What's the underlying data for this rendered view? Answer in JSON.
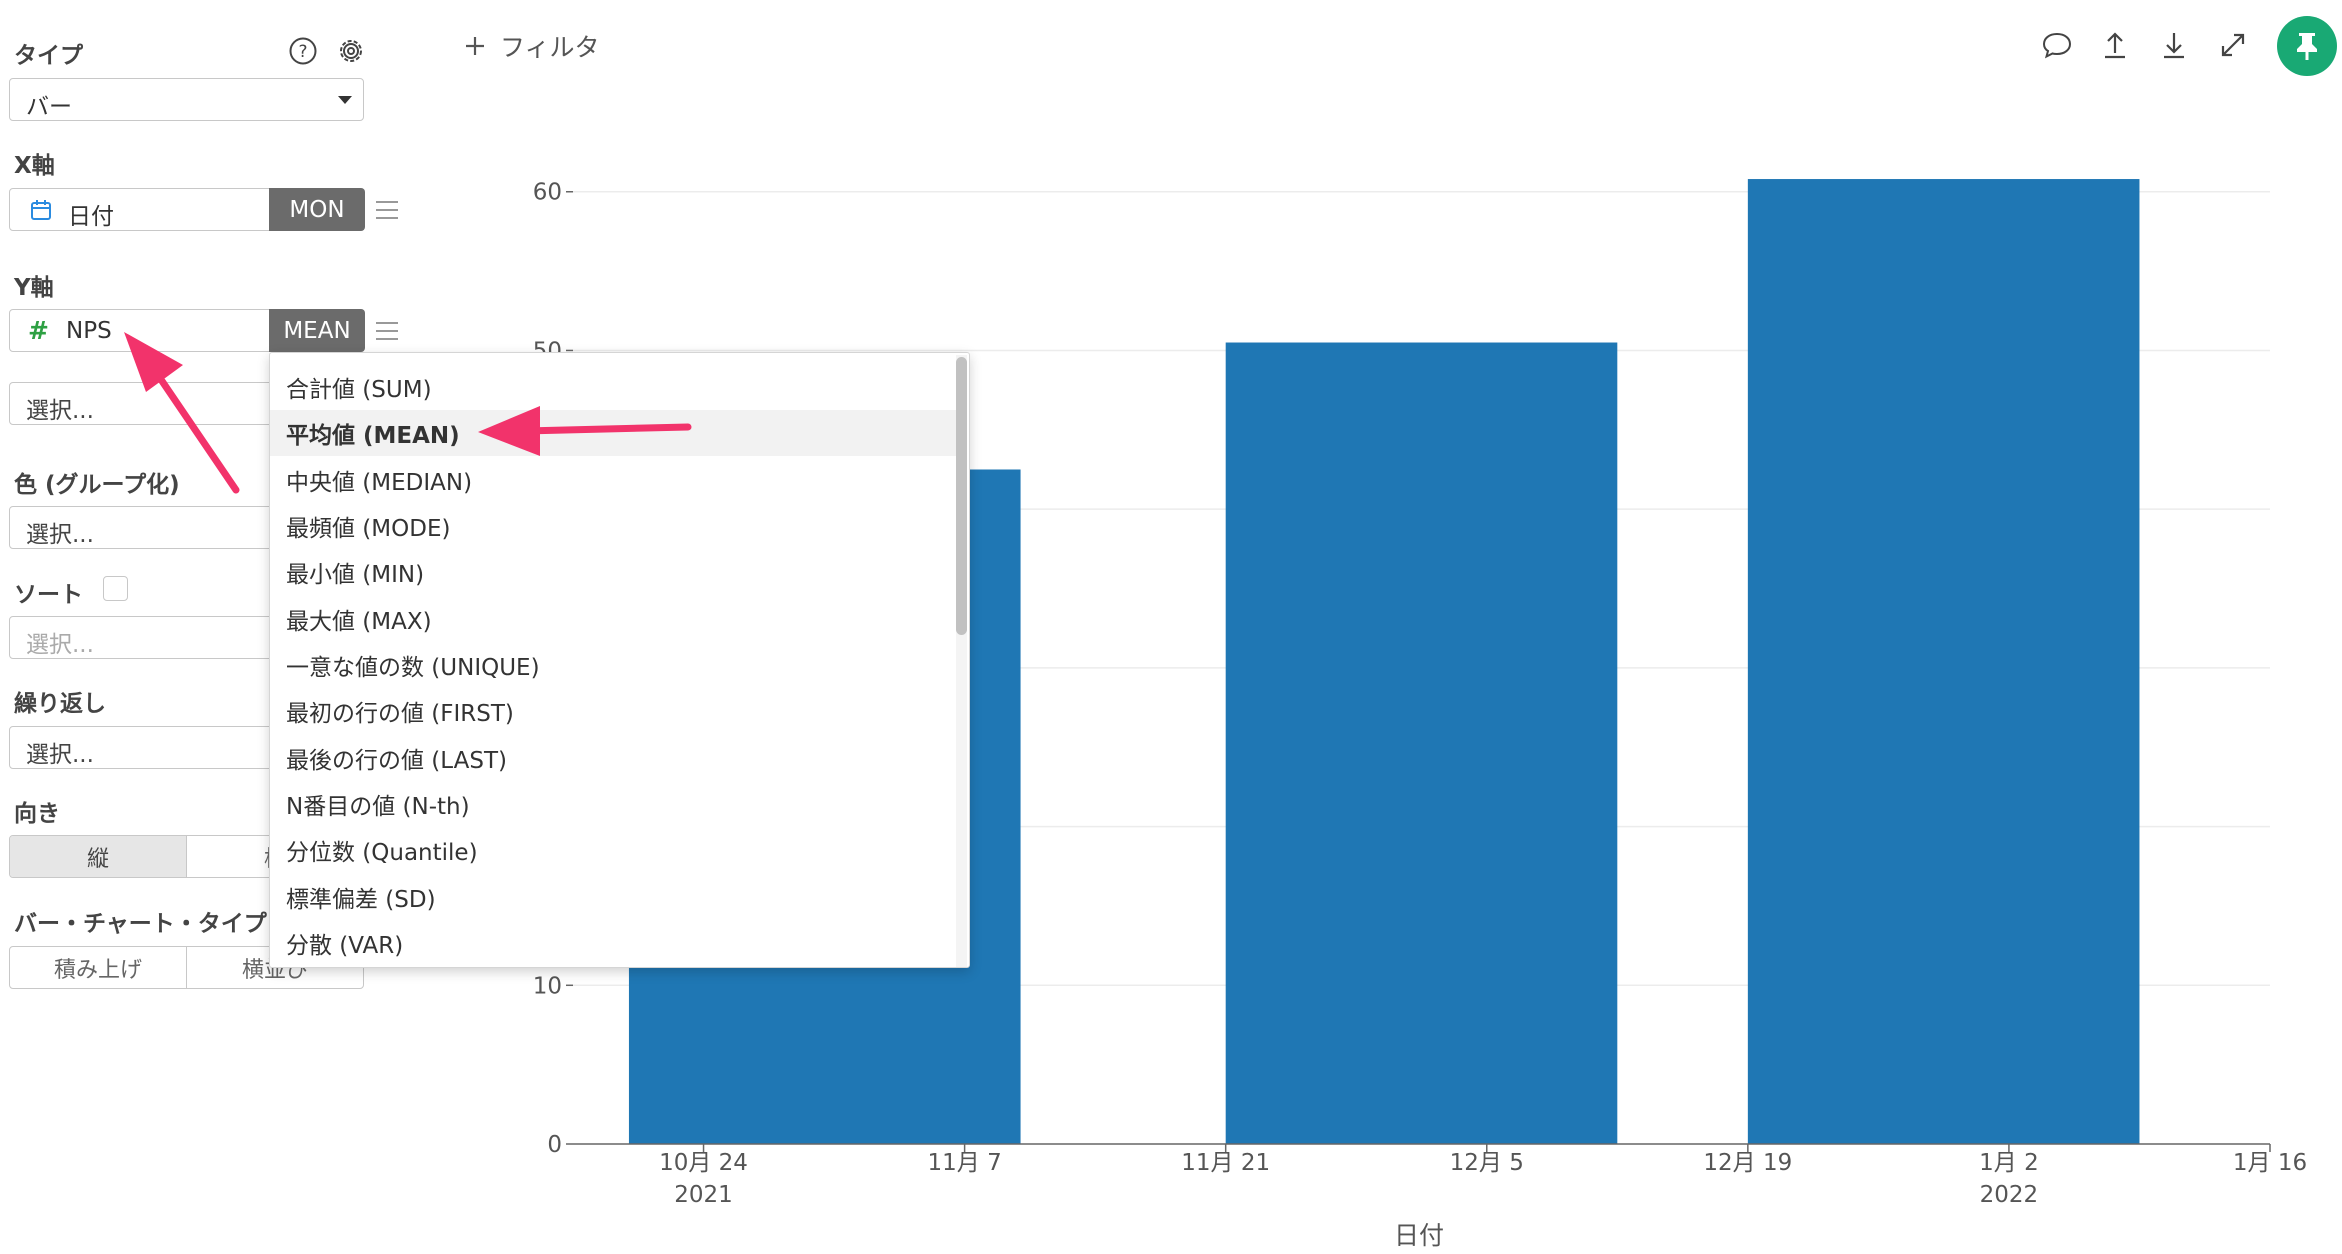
{
  "panel": {
    "type_label": "タイプ",
    "type_value": "バー",
    "x_axis_label": "X軸",
    "x_field": "日付",
    "x_agg": "MON",
    "y_axis_label": "Y軸",
    "y_field": "NPS",
    "y_agg": "MEAN",
    "y_second_placeholder": "選択...",
    "color_label": "色 (グループ化)",
    "color_placeholder": "選択...",
    "sort_label": "ソート",
    "sort_placeholder": "選択...",
    "repeat_label": "繰り返し",
    "repeat_placeholder": "選択...",
    "direction_label": "向き",
    "direction_options": [
      "縦",
      "横"
    ],
    "bar_type_label": "バー・チャート・タイプ",
    "bar_type_options": [
      "積み上げ",
      "横並び"
    ]
  },
  "menu": {
    "items": [
      "合計値 (SUM)",
      "平均値 (MEAN)",
      "中央値 (MEDIAN)",
      "最頻値 (MODE)",
      "最小値 (MIN)",
      "最大値 (MAX)",
      "一意な値の数 (UNIQUE)",
      "最初の行の値 (FIRST)",
      "最後の行の値 (LAST)",
      "N番目の値 (N-th)",
      "分位数 (Quantile)",
      "標準偏差 (SD)",
      "分散 (VAR)"
    ],
    "selected": "平均値 (MEAN)"
  },
  "toolbar": {
    "filter_label": "フィルタ",
    "icons": [
      "comment-icon",
      "upload-icon",
      "download-icon",
      "expand-icon",
      "pin-icon"
    ]
  },
  "colors": {
    "bar": "#1f77b4",
    "accent": "#19a974",
    "arrow": "#f2336b",
    "agg_badge": "#6b6b6b"
  },
  "chart_data": {
    "type": "bar",
    "x_domain": [
      "2021-10-17",
      "2022-01-16"
    ],
    "categories": [
      "2021-10",
      "2021-11",
      "2021-12",
      "2022-01"
    ],
    "bars": [
      {
        "start": "2021-10-20",
        "end": "2021-11-10",
        "value": 42.5
      },
      {
        "start": "2021-11-21",
        "end": "2021-12-12",
        "value": 50.5
      },
      {
        "start": "2021-12-19",
        "end": "2022-01-09",
        "value": 60.8
      }
    ],
    "x_ticks": [
      {
        "date": "2021-10-24",
        "label": "10月 24",
        "sublabel": "2021"
      },
      {
        "date": "2021-11-07",
        "label": "11月 7",
        "sublabel": ""
      },
      {
        "date": "2021-11-21",
        "label": "11月 21",
        "sublabel": ""
      },
      {
        "date": "2021-12-05",
        "label": "12月 5",
        "sublabel": ""
      },
      {
        "date": "2021-12-19",
        "label": "12月 19",
        "sublabel": ""
      },
      {
        "date": "2022-01-02",
        "label": "1月 2",
        "sublabel": "2022"
      },
      {
        "date": "2022-01-16",
        "label": "1月 16",
        "sublabel": ""
      }
    ],
    "y_ticks": [
      0,
      10,
      20,
      30,
      40,
      50,
      60
    ],
    "y_tick_labels_visible": [
      "0",
      "10",
      "50",
      "60"
    ],
    "ylim": [
      0,
      62
    ],
    "xlabel": "日付",
    "ylabel": "",
    "grid": true
  }
}
